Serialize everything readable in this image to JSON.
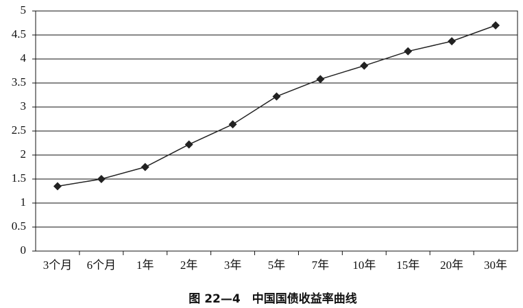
{
  "chart_data": {
    "type": "line",
    "title": "图 22—4　中国国债收益率曲线",
    "categories": [
      "3个月",
      "6个月",
      "1年",
      "2年",
      "3年",
      "5年",
      "7年",
      "10年",
      "15年",
      "20年",
      "30年"
    ],
    "series": [
      {
        "color": "#222222",
        "values": [
          1.35,
          1.5,
          1.75,
          2.22,
          2.64,
          3.22,
          3.58,
          3.86,
          4.16,
          4.37,
          4.7
        ]
      }
    ],
    "ylim": [
      0,
      5
    ],
    "yticks": [
      0,
      0.5,
      1,
      1.5,
      2,
      2.5,
      3,
      3.5,
      4,
      4.5,
      5
    ],
    "grid": true
  }
}
